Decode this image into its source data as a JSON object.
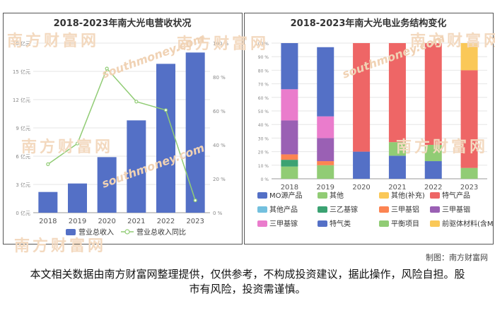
{
  "watermark": {
    "text": "南方财富网",
    "url": "southmoney.com"
  },
  "source": "制图：南方财富网",
  "disclaimer": "本文相关数据由南方财富网整理提供，仅供参考，不构成投资建议，据此操作，风险自担。股市有风险，投资需谨慎。",
  "colors": {
    "bar_blue": "#5470c6",
    "line_green": "#91cc75",
    "yellow": "#fac858",
    "red": "#ee6666",
    "cyan": "#73c0de",
    "teal": "#3ba272",
    "orange": "#fc8452",
    "purple": "#9a60b4",
    "pink": "#ea7ccc"
  },
  "chart_data": [
    {
      "type": "bar",
      "title": "2018-2023年南大光电营收状况",
      "categories": [
        "2018",
        "2019",
        "2020",
        "2021",
        "2022",
        "2023"
      ],
      "series": [
        {
          "name": "营业总收入",
          "axis": "left",
          "values": [
            2.2,
            3.1,
            5.9,
            9.8,
            15.8,
            17.0
          ]
        },
        {
          "name": "营业总收入同比",
          "axis": "right",
          "type": "line",
          "values": [
            28.6,
            40.8,
            85.0,
            65.5,
            60.5,
            7.3
          ]
        }
      ],
      "y_left": {
        "ticks": [
          "0 亿元",
          "3 亿元",
          "6 亿元",
          "9 亿元",
          "12 亿元",
          "15 亿元",
          "18 亿元"
        ],
        "range": [
          0,
          18
        ]
      },
      "y_right": {
        "ticks": [
          "0 %",
          "20 %",
          "40 %",
          "60 %",
          "80 %",
          "100 %"
        ],
        "range": [
          0,
          100
        ]
      }
    },
    {
      "type": "bar",
      "stacked": true,
      "title": "2018-2023年南大光电业务结构变化",
      "categories": [
        "2018",
        "2019",
        "2020",
        "2021",
        "2022",
        "2023"
      ],
      "y_ticks": [
        "0 %",
        "10 %",
        "20 %",
        "30 %",
        "40 %",
        "50 %",
        "60 %",
        "70 %",
        "80 %",
        "90 %",
        "100 %"
      ],
      "series": [
        {
          "name": "MO源产品",
          "color": "#5470c6",
          "values": [
            0,
            0,
            20,
            17,
            13,
            0
          ]
        },
        {
          "name": "其他",
          "color": "#91cc75",
          "values": [
            0,
            0,
            0,
            10,
            12,
            8
          ]
        },
        {
          "name": "其他(补充)",
          "color": "#fac858",
          "values": [
            0,
            0,
            0,
            0,
            0,
            20
          ]
        },
        {
          "name": "特气产品",
          "color": "#ee6666",
          "values": [
            0,
            0,
            80,
            73,
            75,
            72
          ]
        },
        {
          "name": "其他产品",
          "color": "#73c0de",
          "values": [
            0,
            0,
            0,
            0,
            0,
            0
          ]
        },
        {
          "name": "三乙基镓",
          "color": "#3ba272",
          "values": [
            5,
            0,
            0,
            0,
            0,
            0
          ]
        },
        {
          "name": "三甲基铝",
          "color": "#fc8452",
          "values": [
            4,
            3,
            0,
            0,
            0,
            0
          ]
        },
        {
          "name": "三甲基铟",
          "color": "#9a60b4",
          "values": [
            25,
            17,
            0,
            0,
            0,
            0
          ]
        },
        {
          "name": "三甲基镓",
          "color": "#ea7ccc",
          "values": [
            23,
            16,
            0,
            0,
            0,
            0
          ]
        },
        {
          "name": "特气类",
          "color": "#5470c6",
          "values": [
            34,
            51,
            0,
            0,
            0,
            0
          ]
        },
        {
          "name": "平衡项目",
          "color": "#91cc75",
          "values": [
            9,
            10,
            0,
            0,
            0,
            0
          ]
        },
        {
          "name": "前驱体材料(含MO源)",
          "color": "#fac858",
          "values": [
            0,
            0,
            0,
            0,
            0,
            0
          ]
        }
      ],
      "stack_order": [
        "平衡项目",
        "三乙基镓",
        "三甲基铝",
        "三甲基铟",
        "三甲基镓",
        "特气类",
        "MO源产品",
        "其他",
        "特气产品",
        "其他(补充)"
      ]
    }
  ]
}
